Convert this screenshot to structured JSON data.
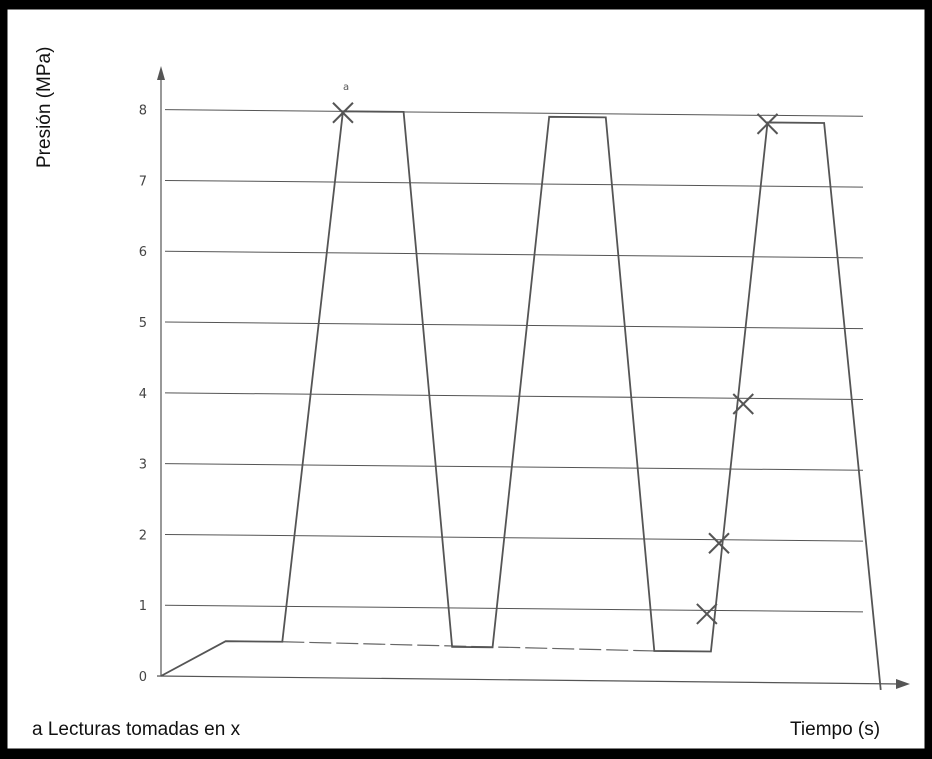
{
  "chart_data": {
    "type": "line",
    "title": "",
    "ylabel": "Presión (MPa)",
    "xlabel": "Tiempo (s)",
    "ylim": [
      0,
      8
    ],
    "yticks": [
      "0",
      "1",
      "2",
      "3",
      "4",
      "5",
      "6",
      "7",
      "8"
    ],
    "grid": true,
    "series": [
      {
        "values_xy": [
          [
            0,
            0
          ],
          [
            0.8,
            0.5
          ],
          [
            1.5,
            0.5
          ],
          [
            2.25,
            8
          ],
          [
            3.0,
            8
          ],
          [
            3.6,
            0.45
          ],
          [
            4.1,
            0.45
          ],
          [
            4.8,
            7.95
          ],
          [
            5.5,
            7.95
          ],
          [
            6.1,
            0.42
          ],
          [
            6.8,
            0.42
          ],
          [
            7.5,
            7.9
          ],
          [
            8.2,
            7.9
          ],
          [
            8.9,
            -0.1
          ]
        ]
      }
    ],
    "baseline_dashed": [
      [
        1.5,
        0.5
      ],
      [
        6.1,
        0.42
      ]
    ],
    "markers": [
      [
        2.25,
        7.98
      ],
      [
        7.5,
        7.88
      ],
      [
        7.2,
        3.92
      ],
      [
        6.9,
        1.95
      ],
      [
        6.75,
        0.95
      ]
    ],
    "marker_annotation": "a",
    "footnote": "a Lecturas tomadas en x"
  }
}
